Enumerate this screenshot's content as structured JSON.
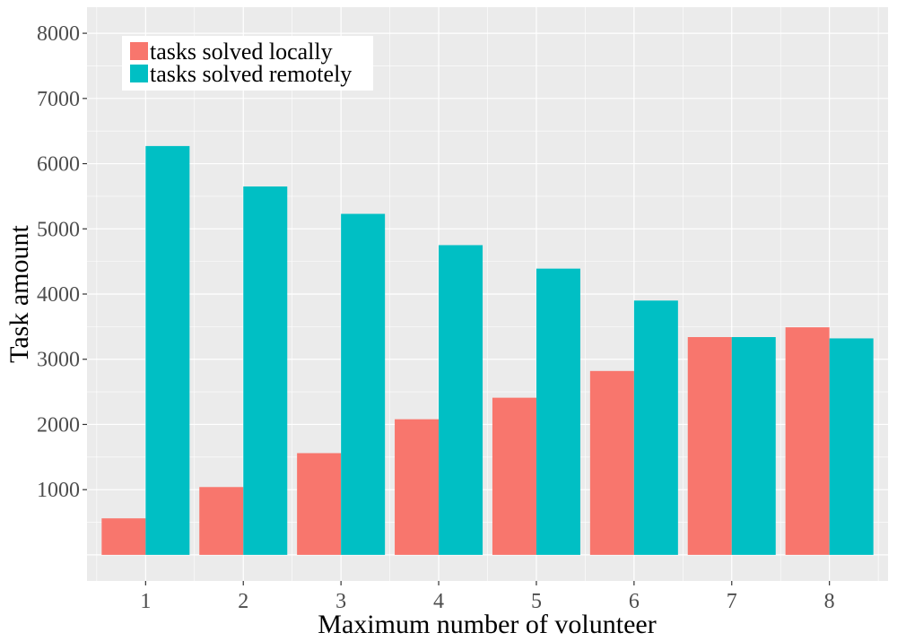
{
  "chart_data": {
    "type": "bar",
    "title": "",
    "xlabel": "Maximum number of volunteer",
    "ylabel": "Task amount",
    "categories": [
      "1",
      "2",
      "3",
      "4",
      "5",
      "6",
      "7",
      "8"
    ],
    "series": [
      {
        "name": "tasks solved locally",
        "color": "#F8766D",
        "values": [
          560,
          1040,
          1560,
          2080,
          2410,
          2820,
          3340,
          3490
        ]
      },
      {
        "name": "tasks solved remotely",
        "color": "#00BFC4",
        "values": [
          6270,
          5650,
          5230,
          4750,
          4390,
          3900,
          3340,
          3320
        ]
      }
    ],
    "ylim": [
      -400,
      8400
    ],
    "yticks": [
      1000,
      2000,
      3000,
      4000,
      5000,
      6000,
      7000,
      8000
    ],
    "ytick_labels": [
      "1000",
      "2000",
      "3000",
      "4000",
      "5000",
      "6000",
      "7000",
      "8000"
    ],
    "grid": true,
    "panel_background": "#EBEBEB",
    "legend_position": "top-left"
  }
}
